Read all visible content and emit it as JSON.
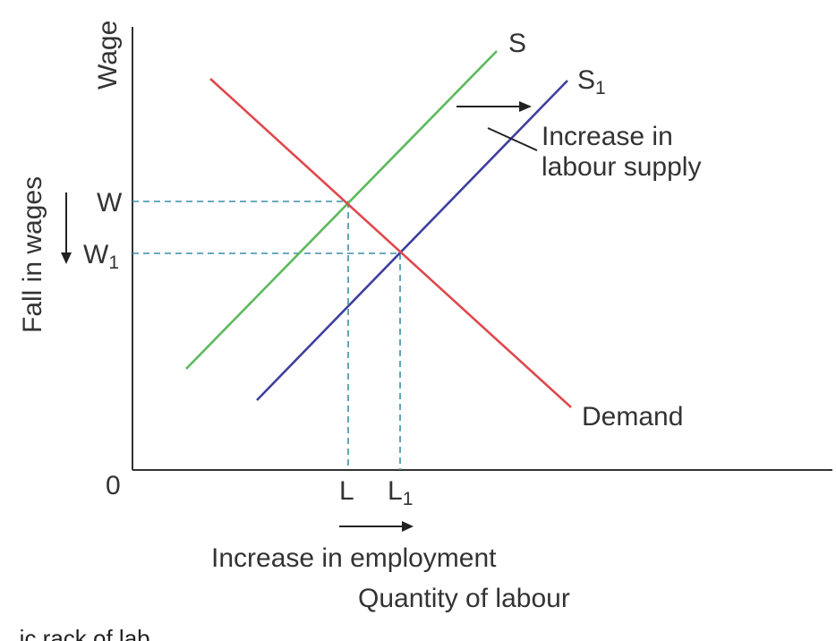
{
  "axes": {
    "y_label": "Wage",
    "x_label": "Quantity of labour",
    "origin": "0"
  },
  "lines": {
    "supply": {
      "label": "S",
      "color": "#5cb85c"
    },
    "supply_new": {
      "label": "S",
      "subscript": "1",
      "color": "#3f3f9f"
    },
    "demand": {
      "label": "Demand",
      "color": "#e0474c"
    }
  },
  "ticks": {
    "w": "W",
    "w1": {
      "main": "W",
      "subscript": "1"
    },
    "l": "L",
    "l1": {
      "main": "L",
      "subscript": "1"
    }
  },
  "annotations": {
    "supply_shift": [
      "Increase in",
      "labour supply"
    ],
    "wage_fall": "Fall in wages",
    "employment": "Increase in employment"
  },
  "colors": {
    "guide": "#3a8fa8",
    "axis": "#333333"
  },
  "cropped_caption": "...ic rack of lab..."
}
